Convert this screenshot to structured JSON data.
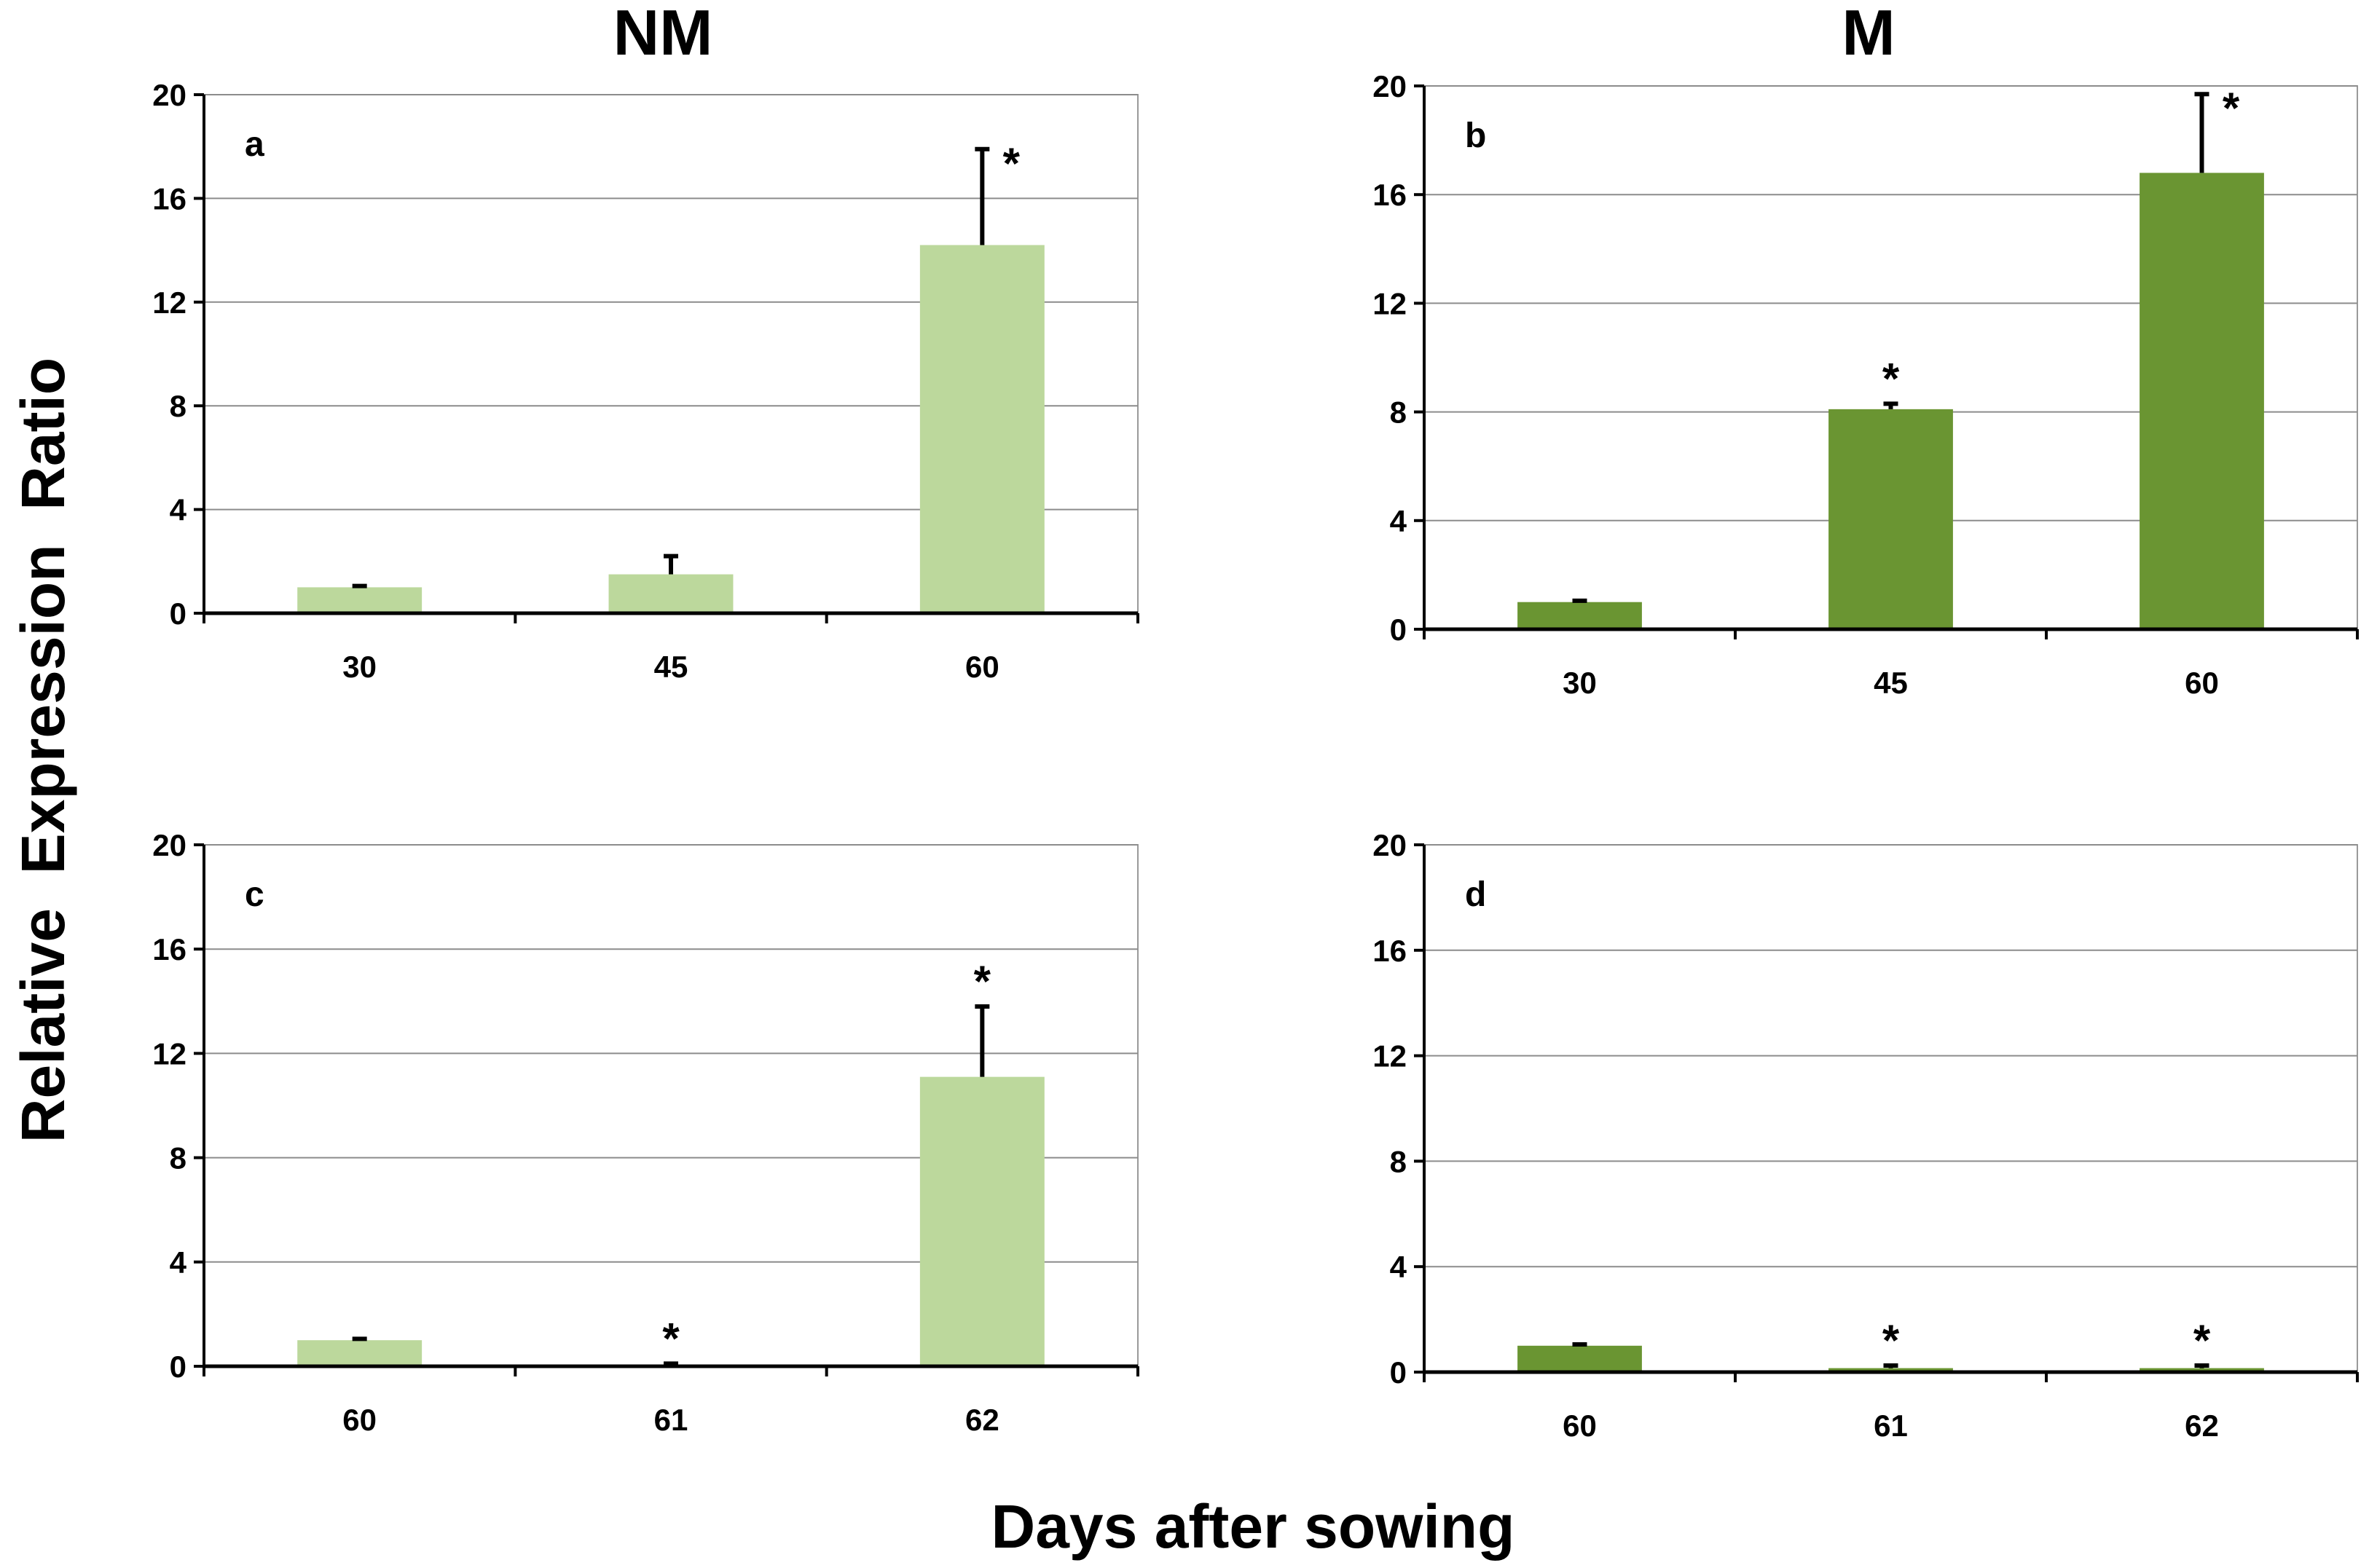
{
  "figure": {
    "column_titles": [
      "NM",
      "M"
    ],
    "ylabel": "Relative  Expression  Ratio",
    "xlabel": "Days after sowing"
  },
  "chart_data": [
    {
      "type": "bar",
      "panel": "a",
      "column": "NM",
      "categories": [
        "30",
        "45",
        "60"
      ],
      "values": [
        1.0,
        1.5,
        14.2
      ],
      "errors": [
        0.05,
        0.7,
        3.7
      ],
      "significant": [
        false,
        false,
        true
      ],
      "yticks": [
        "0",
        "4",
        "8",
        "12",
        "16",
        "20"
      ],
      "ylim": [
        0,
        20
      ],
      "grid": true,
      "color": "#bcd89c"
    },
    {
      "type": "bar",
      "panel": "b",
      "column": "M",
      "categories": [
        "30",
        "45",
        "60"
      ],
      "values": [
        1.0,
        8.1,
        16.8
      ],
      "errors": [
        0.05,
        0.2,
        2.9
      ],
      "significant": [
        false,
        true,
        true
      ],
      "yticks": [
        "0",
        "4",
        "8",
        "12",
        "16",
        "20"
      ],
      "ylim": [
        0,
        20
      ],
      "grid": true,
      "color": "#6a9532"
    },
    {
      "type": "bar",
      "panel": "c",
      "column": "NM",
      "categories": [
        "60",
        "61",
        "62"
      ],
      "values": [
        1.0,
        0.05,
        11.1
      ],
      "errors": [
        0.05,
        0.05,
        2.7
      ],
      "significant": [
        false,
        true,
        true
      ],
      "yticks": [
        "0",
        "4",
        "8",
        "12",
        "16",
        "20"
      ],
      "ylim": [
        0,
        20
      ],
      "grid": true,
      "color": "#bcd89c"
    },
    {
      "type": "bar",
      "panel": "d",
      "column": "M",
      "categories": [
        "60",
        "61",
        "62"
      ],
      "values": [
        1.0,
        0.15,
        0.15
      ],
      "errors": [
        0.05,
        0.1,
        0.1
      ],
      "significant": [
        false,
        true,
        true
      ],
      "yticks": [
        "0",
        "4",
        "8",
        "12",
        "16",
        "20"
      ],
      "ylim": [
        0,
        20
      ],
      "grid": true,
      "color": "#6a9532"
    }
  ],
  "significance_marker": "*"
}
